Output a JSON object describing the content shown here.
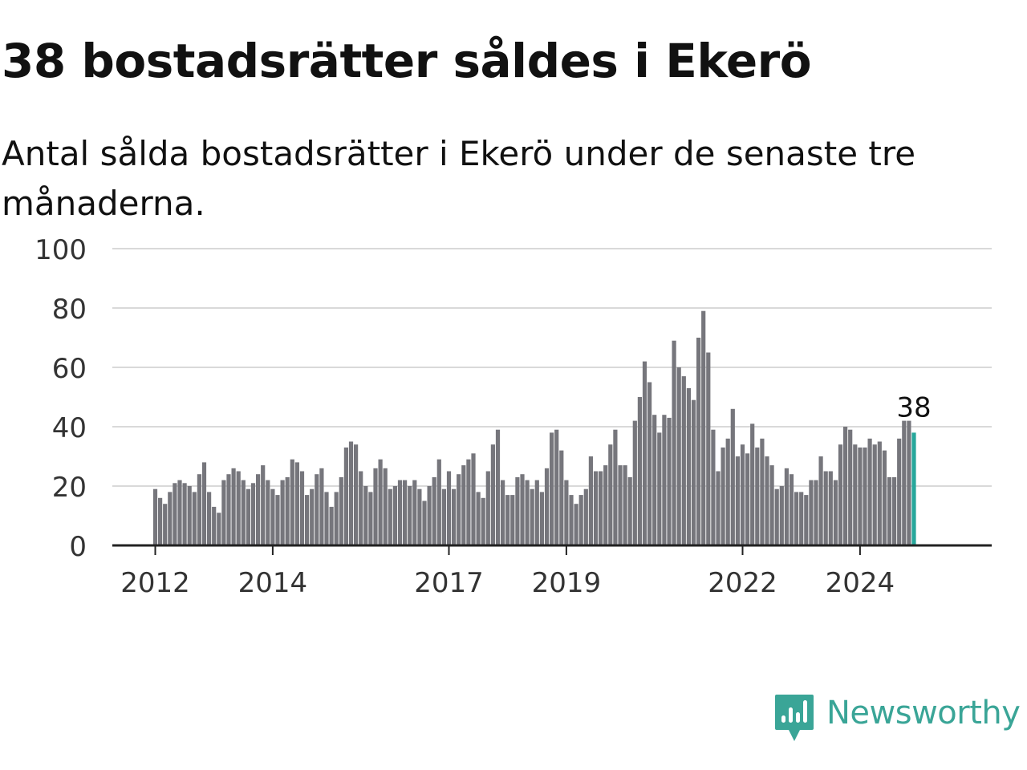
{
  "header": {
    "title": "38 bostadsrätter såldes i Ekerö",
    "subtitle": "Antal sålda bostadsrätter i Ekerö under de senaste tre månaderna."
  },
  "brand": {
    "name": "Newsworthy",
    "color": "#3aa597",
    "icon": "newsworthy-logo-icon"
  },
  "chart_data": {
    "type": "bar",
    "title": "",
    "xlabel": "",
    "ylabel": "",
    "ylim": [
      0,
      100
    ],
    "yticks": [
      0,
      20,
      40,
      60,
      80,
      100
    ],
    "grid": true,
    "legend": "none",
    "bar_color": "#76767c",
    "highlight_color": "#27a79b",
    "x_start": "2012-01",
    "x_ticks": [
      {
        "label": "2012",
        "month": "2012-01"
      },
      {
        "label": "2014",
        "month": "2014-01"
      },
      {
        "label": "2017",
        "month": "2017-01"
      },
      {
        "label": "2019",
        "month": "2019-01"
      },
      {
        "label": "2022",
        "month": "2022-01"
      },
      {
        "label": "2024",
        "month": "2024-01"
      }
    ],
    "series": [
      {
        "values": [
          19,
          16,
          14,
          18,
          21,
          22,
          21,
          20,
          18,
          24,
          28,
          18,
          13,
          11,
          22,
          24,
          26,
          25,
          22,
          19,
          21,
          24,
          27,
          22,
          19,
          17,
          22,
          23,
          29,
          28,
          25,
          17,
          19,
          24,
          26,
          18,
          13,
          18,
          23,
          33,
          35,
          34,
          25,
          20,
          18,
          26,
          29,
          26,
          19,
          20,
          22,
          22,
          20,
          22,
          19,
          15,
          20,
          23,
          29,
          19,
          25,
          19,
          24,
          27,
          29,
          31,
          18,
          16,
          25,
          34,
          39,
          22,
          17,
          17,
          23,
          24,
          22,
          19,
          22,
          18,
          26,
          38,
          39,
          32,
          22,
          17,
          14,
          17,
          19,
          30,
          25,
          25,
          27,
          34,
          39,
          27,
          27,
          23,
          42,
          50,
          62,
          55,
          44,
          38,
          44,
          43,
          69,
          60,
          57,
          53,
          49,
          70,
          79,
          65,
          39,
          25,
          33,
          36,
          46,
          30,
          34,
          31,
          41,
          33,
          36,
          30,
          27,
          19,
          20,
          26,
          24,
          18,
          18,
          17,
          22,
          22,
          30,
          25,
          25,
          22,
          34,
          40,
          39,
          34,
          33,
          33,
          36,
          34,
          35,
          32,
          23,
          23,
          36,
          42,
          42,
          38
        ]
      }
    ],
    "highlight": {
      "index": 155,
      "label": "38"
    }
  }
}
